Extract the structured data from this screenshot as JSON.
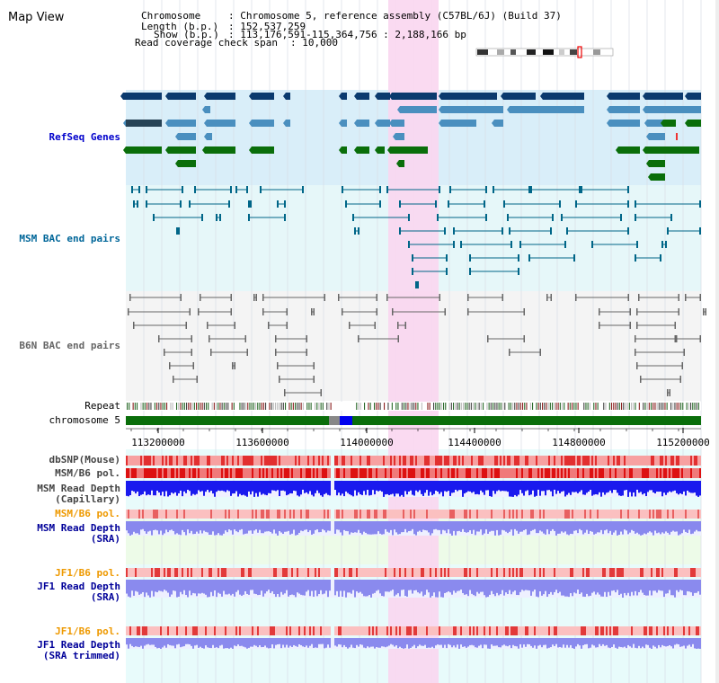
{
  "title": "Map View",
  "info": {
    "chromosome_key": "Chromosome",
    "chromosome_val": ": Chromosome 5, reference assembly (C57BL/6J) (Build 37)",
    "length_key": "Length (b.p.)",
    "length_val": ": 152,537,259",
    "show_key": "Show (b.p.)",
    "show_val": ": 113,176,591-115,364,756 : 2,188,166 bp",
    "span_key": "Read coverage check span",
    "span_val": ": 10,000"
  },
  "tracks": {
    "refseq": "RefSeq Genes",
    "msm_bac": "MSM BAC end pairs",
    "b6n_bac": "B6N BAC end pairs",
    "repeat": "Repeat",
    "chromosome": "chromosome 5",
    "dbsnp": "dbSNP(Mouse)",
    "msm_b6_pol": "MSM/B6 pol.",
    "msm_read_cap_1": "MSM Read Depth",
    "msm_read_cap_2": "(Capillary)",
    "msm_b6_pol_sra": "MSM/B6 pol.",
    "msm_read_sra_1": "MSM Read Depth",
    "msm_read_sra_2": "(SRA)",
    "jf1_b6_pol": "JF1/B6 pol.",
    "jf1_read_sra_1": "JF1 Read Depth",
    "jf1_read_sra_2": "(SRA)",
    "jf1_b6_pol_t": "JF1/B6 pol.",
    "jf1_read_trim_1": "JF1 Read Depth",
    "jf1_read_trim_2": "(SRA trimmed)"
  },
  "axis": {
    "ticks": [
      "113200000",
      "113600000",
      "114000000",
      "114400000",
      "114800000",
      "115200000"
    ]
  },
  "colors": {
    "refseq_label": "#0000cc",
    "msm_label": "#006699",
    "b6n_label": "#666666",
    "sra_label": "#000099",
    "pol_sra_label": "#ee9900",
    "highlight": "#f9d6ef",
    "gene_navy": "#0b3a6e",
    "gene_teal": "#4a8fbf",
    "gene_green": "#0a6e0a",
    "chrom_green": "#0a6e0a"
  }
}
